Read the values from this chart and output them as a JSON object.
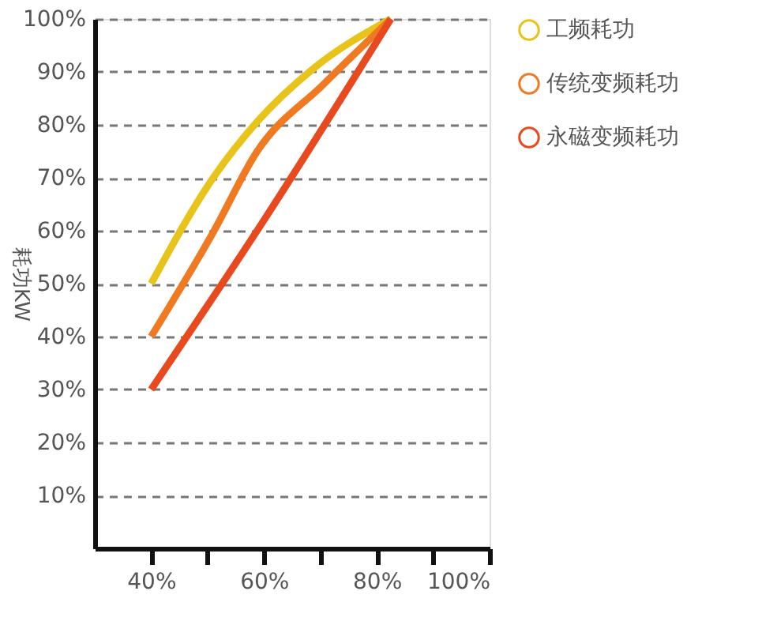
{
  "chart_data": {
    "type": "line",
    "ylabel": "耗功KW",
    "xlim": [
      30,
      100
    ],
    "ylim": [
      0,
      100
    ],
    "xticks": [
      {
        "value": 40,
        "label": "40%"
      },
      {
        "value": 50,
        "label": null
      },
      {
        "value": 60,
        "label": "60%"
      },
      {
        "value": 70,
        "label": null
      },
      {
        "value": 80,
        "label": "80%"
      },
      {
        "value": 90,
        "label": null
      },
      {
        "value": 100,
        "label": "100%"
      }
    ],
    "yticks": [
      {
        "value": 10,
        "label": "10%"
      },
      {
        "value": 20,
        "label": "20%"
      },
      {
        "value": 30,
        "label": "30%"
      },
      {
        "value": 40,
        "label": "40%"
      },
      {
        "value": 50,
        "label": "50%"
      },
      {
        "value": 60,
        "label": "60%"
      },
      {
        "value": 70,
        "label": "70%"
      },
      {
        "value": 80,
        "label": "80%"
      },
      {
        "value": 90,
        "label": "90%"
      },
      {
        "value": 100,
        "label": "100%"
      }
    ],
    "grid": "y",
    "legend": "right",
    "marker": "none",
    "line_style": "solid",
    "series": [
      {
        "name": "工频耗功",
        "color": "#e8c31a",
        "x": [
          40,
          51,
          58.8,
          68.6,
          82.5
        ],
        "values": [
          50,
          70,
          80.6,
          90.5,
          100
        ]
      },
      {
        "name": "传统变频耗功",
        "color": "#ef7a22",
        "x": [
          40,
          51,
          58.8,
          70.5,
          82.5
        ],
        "values": [
          40,
          59.7,
          75,
          87.6,
          100
        ]
      },
      {
        "name": "永磁变频耗功",
        "color": "#e8491f",
        "x": [
          40,
          60,
          82.5
        ],
        "values": [
          30,
          62,
          100
        ]
      }
    ]
  }
}
